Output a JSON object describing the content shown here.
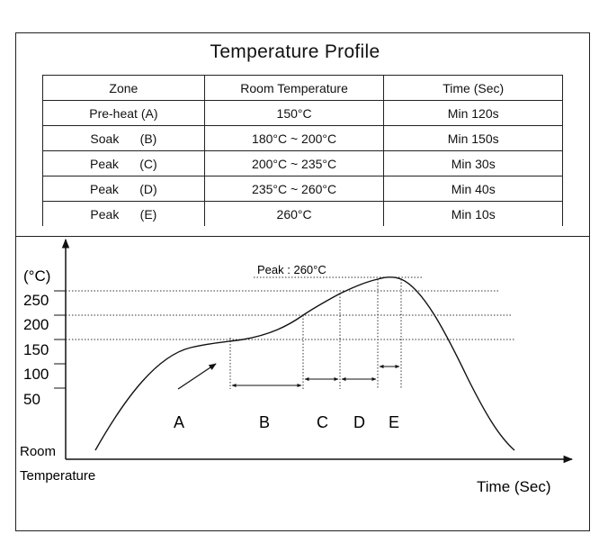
{
  "title": "Temperature Profile",
  "table": {
    "headers": [
      "Zone",
      "Room  Temperature",
      "Time (Sec)"
    ],
    "rows": [
      {
        "zone": "Pre-heat (A)",
        "temp": "150°C",
        "time": "Min 120s"
      },
      {
        "zone": "Soak      (B)",
        "temp": "180°C ~ 200°C",
        "time": "Min 150s"
      },
      {
        "zone": "Peak      (C)",
        "temp": "200°C ~ 235°C",
        "time": "Min 30s"
      },
      {
        "zone": "Peak      (D)",
        "temp": "235°C ~ 260°C",
        "time": "Min 40s"
      },
      {
        "zone": "Peak      (E)",
        "temp": "260°C",
        "time": "Min 10s"
      }
    ]
  },
  "chart": {
    "y_unit": "(°C)",
    "y_ticks": [
      "250",
      "200",
      "150",
      "100",
      "50"
    ],
    "y_origin_label_1": "Room",
    "y_origin_label_2": "Temperature",
    "x_label": "Time (Sec)",
    "peak_label": "Peak : 260°C",
    "zones": [
      "A",
      "B",
      "C",
      "D",
      "E"
    ]
  }
}
